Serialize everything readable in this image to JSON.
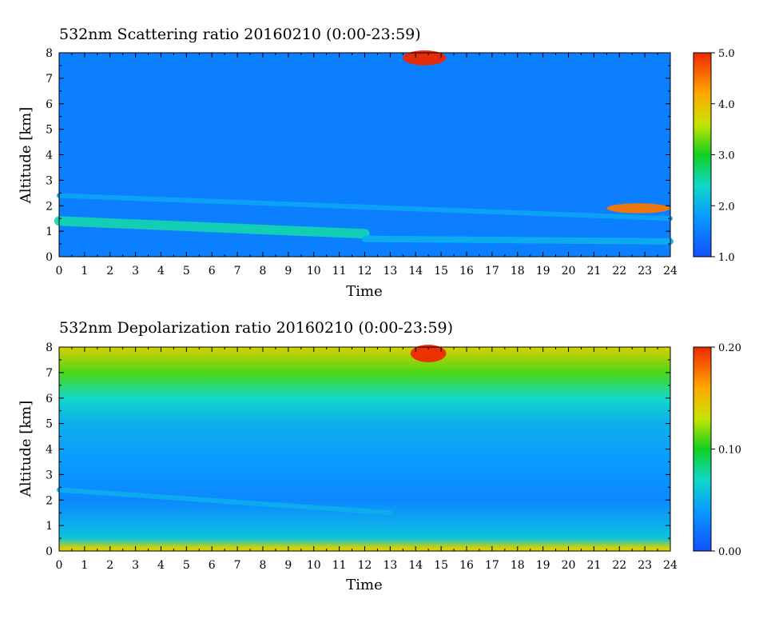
{
  "chart_data": [
    {
      "type": "heatmap",
      "title": "532nm Scattering ratio  20160210 (0:00-23:59)",
      "xlabel": "Time",
      "ylabel": "Altitude [km]",
      "xlim": [
        0,
        24
      ],
      "ylim": [
        0,
        8
      ],
      "x_ticks": [
        "0",
        "1",
        "2",
        "3",
        "4",
        "5",
        "6",
        "7",
        "8",
        "9",
        "10",
        "11",
        "12",
        "13",
        "14",
        "15",
        "16",
        "17",
        "18",
        "19",
        "20",
        "21",
        "22",
        "23",
        "24"
      ],
      "y_ticks": [
        "0",
        "1",
        "2",
        "3",
        "4",
        "5",
        "6",
        "7",
        "8"
      ],
      "colorbar": {
        "min": 1.0,
        "max": 5.0,
        "ticks": [
          "1.0",
          "2.0",
          "3.0",
          "4.0",
          "5.0"
        ]
      },
      "background_value": 1.5,
      "features": [
        {
          "kind": "aerosol layer",
          "t_start": 0,
          "t_end": 12,
          "alt_start": 1.4,
          "alt_end": 0.9,
          "value": 2.5
        },
        {
          "kind": "aerosol layer",
          "t_start": 0,
          "t_end": 24,
          "alt_start": 2.4,
          "alt_end": 1.5,
          "value": 1.9
        },
        {
          "kind": "boundary layer",
          "t_start": 12,
          "t_end": 24,
          "alt_start": 0.7,
          "alt_end": 0.6,
          "value": 2.0
        },
        {
          "kind": "cloud",
          "t_start": 13.5,
          "t_end": 15.2,
          "alt_start": 7.6,
          "alt_end": 8.0,
          "value": 5.0
        },
        {
          "kind": "cloud",
          "t_start": 21.5,
          "t_end": 24,
          "alt_start": 2.0,
          "alt_end": 1.8,
          "value": 4.5
        }
      ]
    },
    {
      "type": "heatmap",
      "title": "532nm Depolarization ratio  20160210 (0:00-23:59)",
      "xlabel": "Time",
      "ylabel": "Altitude [km]",
      "xlim": [
        0,
        24
      ],
      "ylim": [
        0,
        8
      ],
      "x_ticks": [
        "0",
        "1",
        "2",
        "3",
        "4",
        "5",
        "6",
        "7",
        "8",
        "9",
        "10",
        "11",
        "12",
        "13",
        "14",
        "15",
        "16",
        "17",
        "18",
        "19",
        "20",
        "21",
        "22",
        "23",
        "24"
      ],
      "y_ticks": [
        "0",
        "1",
        "2",
        "3",
        "4",
        "5",
        "6",
        "7",
        "8"
      ],
      "colorbar": {
        "min": 0.0,
        "max": 0.2,
        "ticks": [
          "0.00",
          "0.10",
          "0.20"
        ]
      },
      "profile": [
        {
          "alt": 0.1,
          "value": 0.14
        },
        {
          "alt": 0.5,
          "value": 0.06
        },
        {
          "alt": 1.0,
          "value": 0.05
        },
        {
          "alt": 2.0,
          "value": 0.03
        },
        {
          "alt": 3.5,
          "value": 0.04
        },
        {
          "alt": 5.0,
          "value": 0.05
        },
        {
          "alt": 6.0,
          "value": 0.07
        },
        {
          "alt": 7.0,
          "value": 0.11
        },
        {
          "alt": 8.0,
          "value": 0.14
        }
      ],
      "features": [
        {
          "kind": "aerosol layer",
          "t_start": 0,
          "t_end": 13,
          "alt_start": 2.4,
          "alt_end": 1.5,
          "value": 0.05
        },
        {
          "kind": "cloud",
          "t_start": 13.8,
          "t_end": 15.2,
          "alt_start": 7.5,
          "alt_end": 8.0,
          "value": 0.2
        }
      ]
    }
  ]
}
